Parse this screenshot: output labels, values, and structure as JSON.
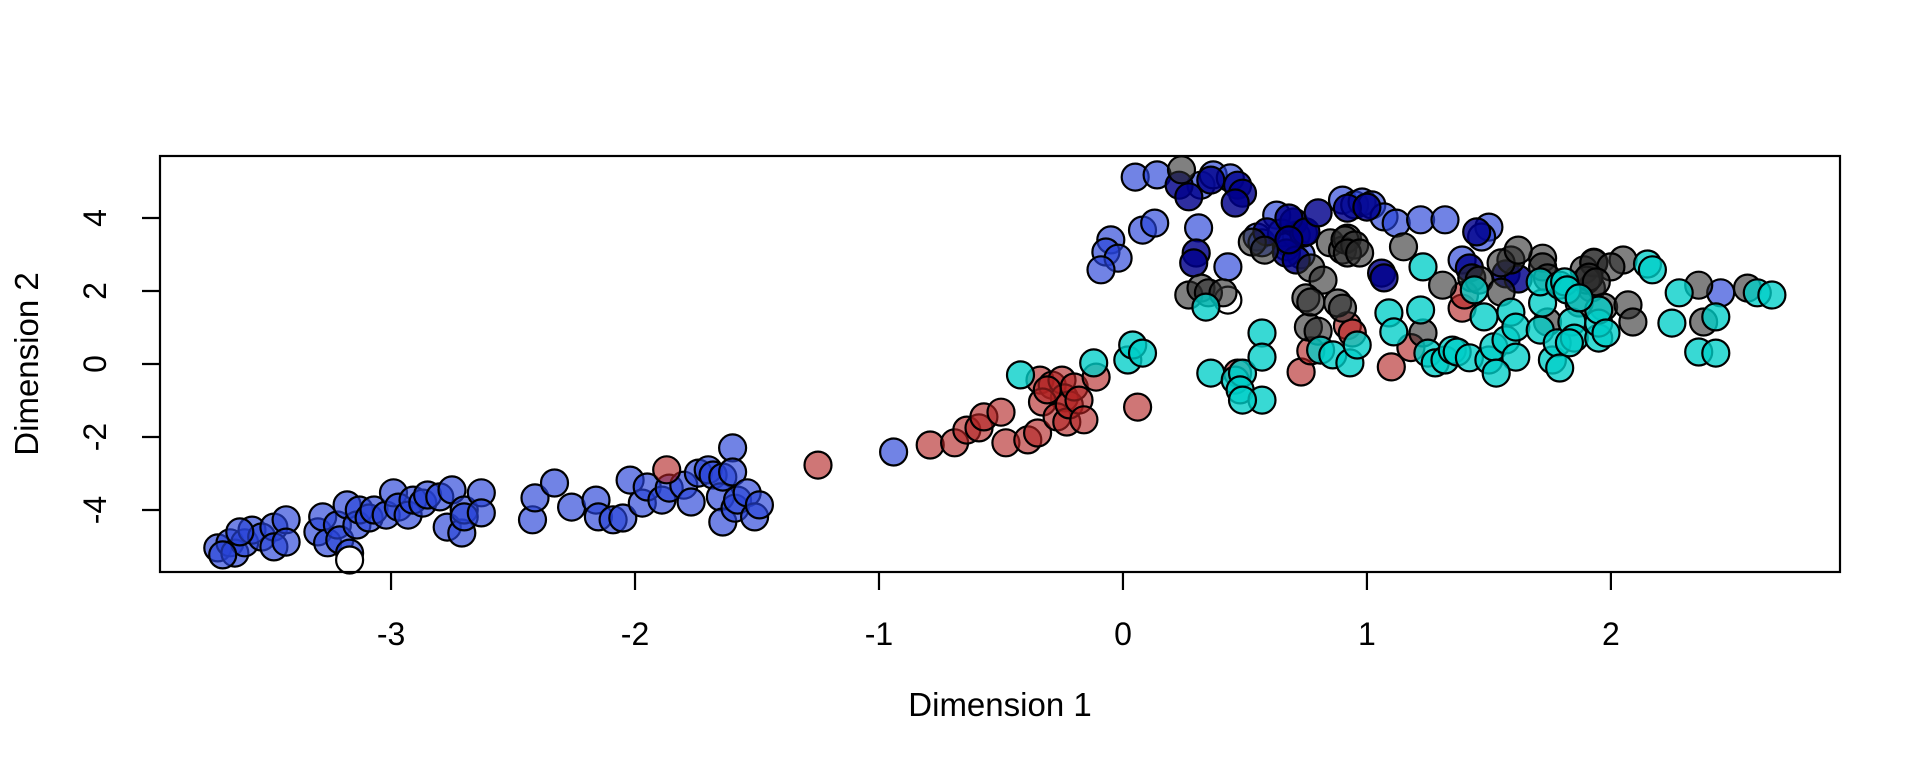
{
  "figure": {
    "background": "#ffffff",
    "border_color": "#000000"
  },
  "chart_data": {
    "type": "scatter",
    "title": "",
    "xlabel": "Dimension 1",
    "ylabel": "Dimension 2",
    "x_ticks": [
      -3,
      -2,
      -1,
      0,
      1,
      2
    ],
    "y_ticks": [
      -4,
      -2,
      0,
      2,
      4
    ],
    "xlim": [
      -3.947,
      2.939
    ],
    "ylim": [
      -5.699,
      5.699
    ],
    "grid": false,
    "legend": null,
    "marker": {
      "radius_px": 13.5,
      "stroke": "#000000",
      "stroke_width": 2.2
    },
    "classes": [
      {
        "name": "royalblue",
        "fill": "#2743D8",
        "opacity": 0.66
      },
      {
        "name": "darkblue",
        "fill": "#00008B",
        "opacity": 0.82
      },
      {
        "name": "white",
        "fill": "#FFFFFF",
        "opacity": 1.0
      },
      {
        "name": "brickred",
        "fill": "#B22222",
        "opacity": 0.62
      },
      {
        "name": "gray",
        "fill": "#2B2B2B",
        "opacity": 0.6
      },
      {
        "name": "turquoise",
        "fill": "#00CEC8",
        "opacity": 0.78
      }
    ],
    "series": [
      {
        "name": "royalblue",
        "points": [
          [
            -3.71,
            -5.04
          ],
          [
            -3.66,
            -4.9
          ],
          [
            -3.64,
            -5.18
          ],
          [
            -3.6,
            -4.9
          ],
          [
            -3.57,
            -4.55
          ],
          [
            -3.53,
            -4.74
          ],
          [
            -3.48,
            -4.47
          ],
          [
            -3.48,
            -5.01
          ],
          [
            -3.43,
            -4.27
          ],
          [
            -3.43,
            -4.88
          ],
          [
            -3.69,
            -5.23
          ],
          [
            -3.62,
            -4.6
          ],
          [
            -3.3,
            -4.6
          ],
          [
            -3.28,
            -4.19
          ],
          [
            -3.26,
            -4.9
          ],
          [
            -3.22,
            -4.41
          ],
          [
            -3.21,
            -4.82
          ],
          [
            -3.18,
            -3.86
          ],
          [
            -3.17,
            -5.18
          ],
          [
            -3.14,
            -4.41
          ],
          [
            -3.13,
            -4.0
          ],
          [
            -3.09,
            -4.22
          ],
          [
            -3.07,
            -4.0
          ],
          [
            -3.02,
            -4.14
          ],
          [
            -2.99,
            -3.53
          ],
          [
            -2.97,
            -3.92
          ],
          [
            -2.93,
            -4.14
          ],
          [
            -2.91,
            -3.73
          ],
          [
            -2.87,
            -3.81
          ],
          [
            -2.85,
            -3.59
          ],
          [
            -2.8,
            -3.64
          ],
          [
            -2.75,
            -3.45
          ],
          [
            -2.77,
            -4.47
          ],
          [
            -2.71,
            -4.63
          ],
          [
            -2.7,
            -4.0
          ],
          [
            -2.7,
            -4.19
          ],
          [
            -2.63,
            -3.53
          ],
          [
            -2.63,
            -4.08
          ],
          [
            -2.42,
            -4.27
          ],
          [
            -2.41,
            -3.67
          ],
          [
            -2.33,
            -3.26
          ],
          [
            -2.26,
            -3.92
          ],
          [
            -2.16,
            -3.73
          ],
          [
            -2.15,
            -4.19
          ],
          [
            -2.09,
            -4.27
          ],
          [
            -2.05,
            -4.22
          ],
          [
            -2.02,
            -3.18
          ],
          [
            -1.97,
            -3.81
          ],
          [
            -1.95,
            -3.37
          ],
          [
            -1.89,
            -3.73
          ],
          [
            -1.86,
            -3.4
          ],
          [
            -1.8,
            -3.32
          ],
          [
            -1.77,
            -3.78
          ],
          [
            -1.74,
            -2.99
          ],
          [
            -1.7,
            -2.9
          ],
          [
            -1.68,
            -3.04
          ],
          [
            -1.65,
            -3.64
          ],
          [
            -1.64,
            -3.1
          ],
          [
            -1.64,
            -4.33
          ],
          [
            -1.6,
            -2.3
          ],
          [
            -1.6,
            -2.96
          ],
          [
            -1.59,
            -3.95
          ],
          [
            -1.58,
            -3.73
          ],
          [
            -1.54,
            -3.53
          ],
          [
            -1.51,
            -4.19
          ],
          [
            -1.49,
            -3.86
          ],
          [
            -0.94,
            -2.41
          ],
          [
            0.05,
            5.12
          ],
          [
            0.14,
            5.18
          ],
          [
            0.32,
            4.9
          ],
          [
            0.37,
            5.18
          ],
          [
            0.44,
            5.1
          ],
          [
            -0.05,
            3.4
          ],
          [
            -0.07,
            3.07
          ],
          [
            -0.02,
            2.9
          ],
          [
            -0.09,
            2.58
          ],
          [
            0.08,
            3.67
          ],
          [
            0.13,
            3.86
          ],
          [
            0.31,
            3.73
          ],
          [
            0.43,
            2.66
          ],
          [
            0.63,
            4.08
          ],
          [
            0.68,
            3.32
          ],
          [
            0.55,
            3.48
          ],
          [
            0.57,
            3.32
          ],
          [
            0.65,
            3.59
          ],
          [
            0.71,
            3.53
          ],
          [
            0.73,
            2.99
          ],
          [
            0.67,
            3.21
          ],
          [
            0.9,
            4.49
          ],
          [
            0.95,
            4.36
          ],
          [
            0.98,
            4.44
          ],
          [
            1.02,
            4.36
          ],
          [
            1.07,
            4.03
          ],
          [
            1.12,
            3.86
          ],
          [
            1.22,
            3.95
          ],
          [
            1.32,
            3.95
          ],
          [
            1.39,
            2.85
          ],
          [
            1.5,
            3.75
          ],
          [
            1.47,
            3.48
          ],
          [
            2.45,
            1.95
          ]
        ]
      },
      {
        "name": "darkblue",
        "points": [
          [
            0.23,
            4.9
          ],
          [
            0.27,
            4.58
          ],
          [
            0.36,
            5.04
          ],
          [
            0.47,
            4.9
          ],
          [
            0.49,
            4.68
          ],
          [
            0.46,
            4.41
          ],
          [
            0.3,
            3.04
          ],
          [
            0.29,
            2.77
          ],
          [
            0.59,
            3.62
          ],
          [
            0.7,
            3.89
          ],
          [
            0.74,
            3.59
          ],
          [
            0.67,
            3.04
          ],
          [
            0.71,
            2.85
          ],
          [
            0.68,
            4.0
          ],
          [
            0.75,
            3.62
          ],
          [
            0.8,
            4.14
          ],
          [
            0.68,
            3.4
          ],
          [
            0.92,
            4.27
          ],
          [
            1.0,
            4.3
          ],
          [
            1.06,
            2.49
          ],
          [
            1.07,
            2.36
          ],
          [
            1.45,
            3.62
          ],
          [
            1.42,
            2.63
          ],
          [
            1.57,
            2.47
          ],
          [
            1.62,
            2.33
          ]
        ]
      },
      {
        "name": "white",
        "points": [
          [
            -3.17,
            -5.37
          ],
          [
            0.43,
            1.75
          ]
        ]
      },
      {
        "name": "brickred",
        "points": [
          [
            -1.87,
            -2.9
          ],
          [
            -1.25,
            -2.77
          ],
          [
            -0.79,
            -2.22
          ],
          [
            -0.69,
            -2.16
          ],
          [
            -0.64,
            -1.81
          ],
          [
            -0.59,
            -1.75
          ],
          [
            -0.57,
            -1.45
          ],
          [
            -0.5,
            -1.32
          ],
          [
            -0.48,
            -2.16
          ],
          [
            -0.39,
            -2.08
          ],
          [
            -0.35,
            -1.89
          ],
          [
            -0.34,
            -0.44
          ],
          [
            -0.29,
            -0.58
          ],
          [
            -0.25,
            -0.44
          ],
          [
            -0.24,
            -0.93
          ],
          [
            -0.33,
            -1.04
          ],
          [
            -0.31,
            -0.71
          ],
          [
            -0.27,
            -1.45
          ],
          [
            -0.23,
            -1.59
          ],
          [
            -0.22,
            -1.12
          ],
          [
            -0.2,
            -0.63
          ],
          [
            -0.18,
            -0.99
          ],
          [
            -0.16,
            -1.53
          ],
          [
            -0.11,
            -0.36
          ],
          [
            0.06,
            -1.18
          ],
          [
            0.47,
            -0.25
          ],
          [
            0.73,
            -0.22
          ],
          [
            0.77,
            0.36
          ],
          [
            0.92,
            1.05
          ],
          [
            0.94,
            0.85
          ],
          [
            1.1,
            -0.08
          ],
          [
            1.18,
            0.45
          ],
          [
            1.39,
            1.53
          ],
          [
            1.4,
            1.89
          ]
        ]
      },
      {
        "name": "gray",
        "points": [
          [
            0.24,
            5.32
          ],
          [
            0.53,
            3.34
          ],
          [
            0.58,
            3.12
          ],
          [
            0.77,
            2.63
          ],
          [
            0.82,
            2.3
          ],
          [
            0.85,
            3.32
          ],
          [
            0.9,
            3.12
          ],
          [
            0.92,
            3.45
          ],
          [
            0.27,
            1.89
          ],
          [
            0.32,
            2.08
          ],
          [
            0.35,
            1.95
          ],
          [
            0.41,
            1.95
          ],
          [
            0.75,
            1.81
          ],
          [
            0.88,
            1.67
          ],
          [
            0.91,
            3.4
          ],
          [
            0.95,
            3.26
          ],
          [
            0.92,
            3.04
          ],
          [
            0.97,
            3.04
          ],
          [
            1.15,
            3.21
          ],
          [
            0.76,
            1.01
          ],
          [
            0.77,
            1.7
          ],
          [
            0.8,
            0.9
          ],
          [
            0.9,
            1.53
          ],
          [
            1.23,
            0.85
          ],
          [
            1.31,
            2.16
          ],
          [
            1.43,
            2.36
          ],
          [
            1.46,
            2.3
          ],
          [
            1.55,
            1.97
          ],
          [
            1.59,
            2.85
          ],
          [
            1.72,
            2.9
          ],
          [
            1.93,
            2.79
          ],
          [
            2.05,
            2.85
          ],
          [
            1.89,
            2.58
          ],
          [
            1.92,
            2.08
          ],
          [
            1.74,
            1.15
          ],
          [
            1.87,
            1.67
          ],
          [
            1.97,
            1.56
          ],
          [
            2.07,
            1.62
          ],
          [
            2.09,
            1.15
          ],
          [
            1.55,
            2.77
          ],
          [
            1.62,
            3.12
          ],
          [
            1.72,
            2.66
          ],
          [
            1.74,
            2.36
          ],
          [
            1.93,
            2.77
          ],
          [
            2.0,
            2.66
          ],
          [
            1.9,
            2.3
          ],
          [
            2.36,
            2.16
          ],
          [
            2.56,
            2.08
          ],
          [
            2.38,
            1.15
          ],
          [
            1.91,
            2.38
          ],
          [
            1.94,
            2.25
          ]
        ]
      },
      {
        "name": "turquoise",
        "points": [
          [
            -0.42,
            -0.3
          ],
          [
            -0.12,
            0.03
          ],
          [
            0.02,
            0.11
          ],
          [
            0.04,
            0.52
          ],
          [
            0.08,
            0.3
          ],
          [
            0.34,
            1.56
          ],
          [
            0.36,
            -0.25
          ],
          [
            0.46,
            -0.44
          ],
          [
            0.49,
            -0.25
          ],
          [
            0.57,
            0.85
          ],
          [
            0.57,
            0.19
          ],
          [
            0.48,
            -0.71
          ],
          [
            0.57,
            -0.99
          ],
          [
            0.49,
            -0.99
          ],
          [
            0.81,
            0.38
          ],
          [
            0.86,
            0.25
          ],
          [
            0.93,
            0.03
          ],
          [
            0.96,
            0.52
          ],
          [
            1.09,
            1.4
          ],
          [
            1.22,
            1.48
          ],
          [
            1.11,
            0.88
          ],
          [
            1.25,
            0.3
          ],
          [
            1.28,
            0.03
          ],
          [
            1.32,
            0.11
          ],
          [
            1.35,
            0.38
          ],
          [
            1.37,
            0.33
          ],
          [
            1.42,
            0.17
          ],
          [
            1.5,
            0.11
          ],
          [
            1.52,
            0.47
          ],
          [
            1.23,
            2.66
          ],
          [
            1.44,
            2.03
          ],
          [
            1.48,
            1.29
          ],
          [
            1.57,
            0.66
          ],
          [
            1.59,
            1.42
          ],
          [
            1.61,
            1.01
          ],
          [
            1.61,
            0.19
          ],
          [
            1.71,
            0.93
          ],
          [
            1.72,
            1.67
          ],
          [
            1.76,
            0.11
          ],
          [
            1.78,
            0.58
          ],
          [
            1.79,
            -0.11
          ],
          [
            1.53,
            -0.25
          ],
          [
            1.84,
            1.15
          ],
          [
            1.85,
            0.71
          ],
          [
            1.95,
            0.71
          ],
          [
            1.95,
            1.12
          ],
          [
            1.95,
            1.48
          ],
          [
            1.98,
            0.85
          ],
          [
            1.83,
            0.58
          ],
          [
            1.71,
            2.25
          ],
          [
            1.79,
            2.16
          ],
          [
            1.81,
            2.25
          ],
          [
            1.82,
            2.03
          ],
          [
            1.87,
            1.81
          ],
          [
            2.15,
            2.74
          ],
          [
            2.17,
            2.58
          ],
          [
            2.28,
            1.95
          ],
          [
            2.6,
            1.95
          ],
          [
            2.66,
            1.89
          ],
          [
            2.25,
            1.12
          ],
          [
            2.43,
            1.29
          ],
          [
            2.36,
            0.33
          ],
          [
            2.43,
            0.3
          ]
        ]
      }
    ]
  }
}
